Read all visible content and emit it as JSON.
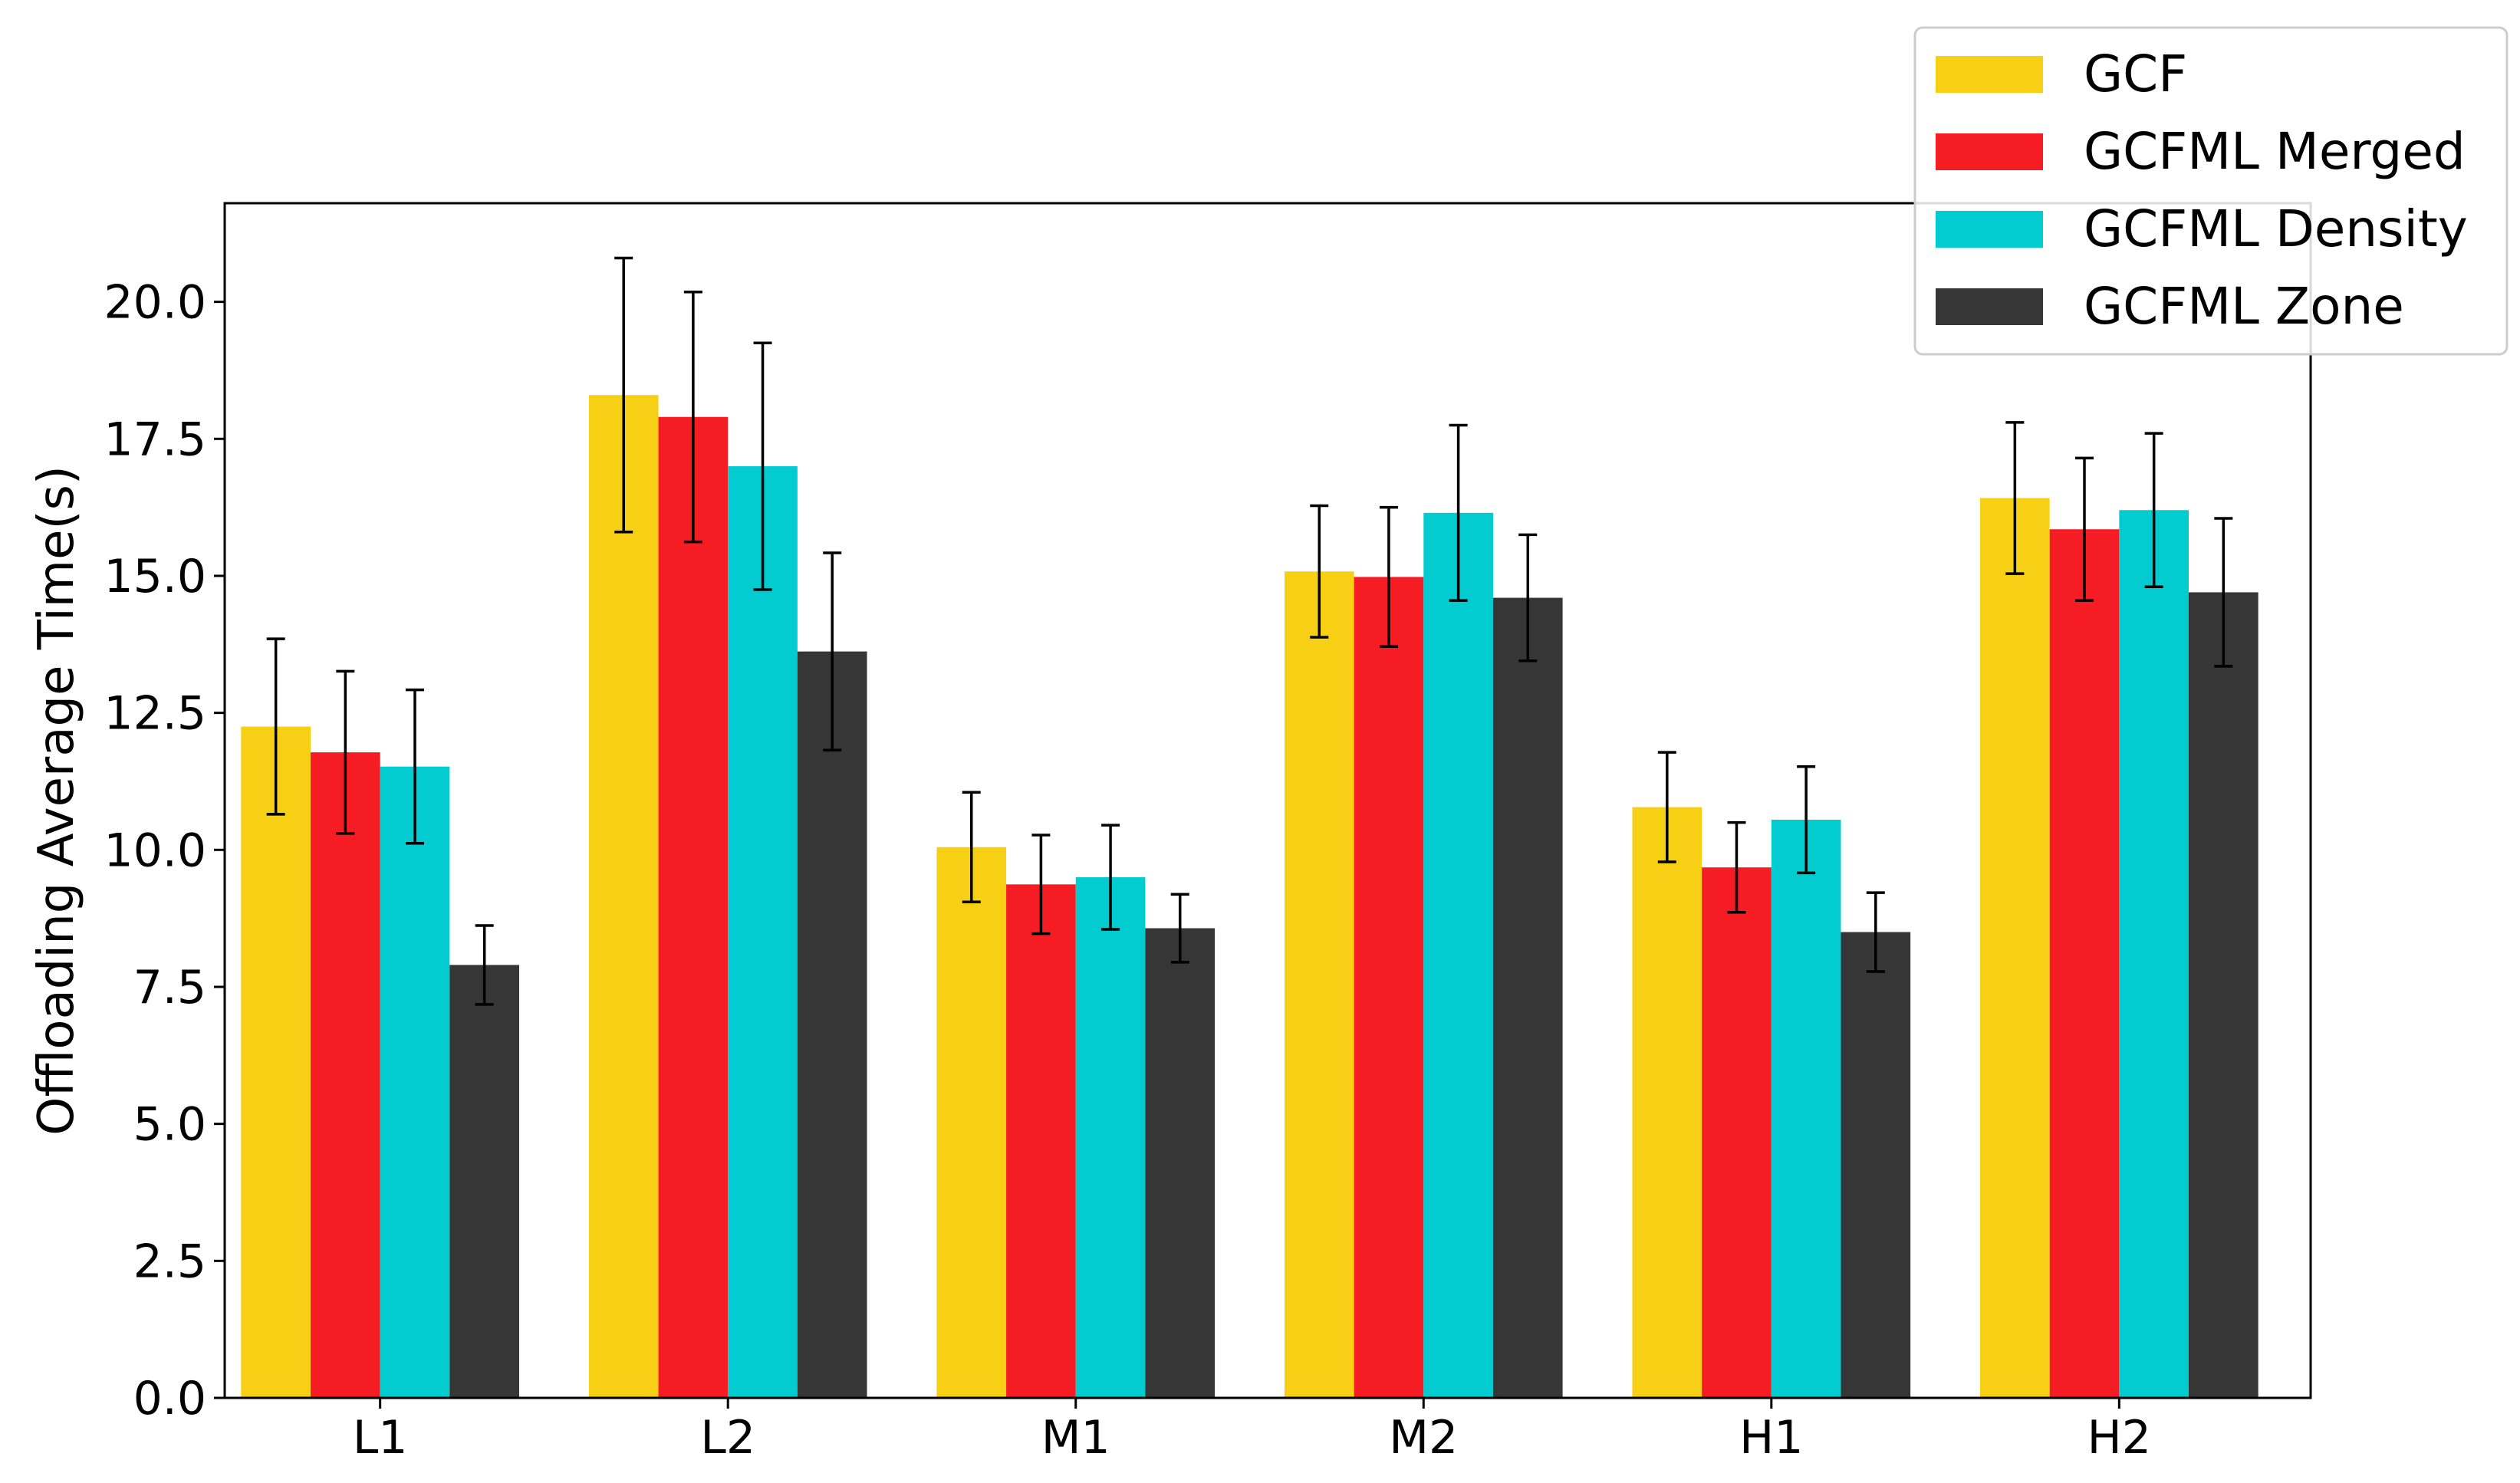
{
  "chart_data": {
    "type": "bar",
    "title": "",
    "xlabel": "",
    "ylabel": "Offloading Average Time(s)",
    "ylim": [
      0,
      21.8
    ],
    "yticks": [
      "0.0",
      "2.5",
      "5.0",
      "7.5",
      "10.0",
      "12.5",
      "15.0",
      "17.5",
      "20.0"
    ],
    "categories": [
      "L1",
      "L2",
      "M1",
      "M2",
      "H1",
      "H2"
    ],
    "grid": false,
    "legend_position": "top-right",
    "series": [
      {
        "name": "GCF",
        "color": "#F7D016",
        "values": [
          12.25,
          18.3,
          10.05,
          15.08,
          10.78,
          16.42
        ],
        "errors": [
          1.6,
          2.5,
          1.0,
          1.2,
          1.0,
          1.38
        ]
      },
      {
        "name": "GCFML Merged",
        "color": "#F51C24",
        "values": [
          11.78,
          17.9,
          9.37,
          14.98,
          9.68,
          15.85
        ],
        "errors": [
          1.48,
          2.28,
          0.9,
          1.27,
          0.82,
          1.3
        ]
      },
      {
        "name": "GCFML Density",
        "color": "#02CCCF",
        "values": [
          11.52,
          17.0,
          9.5,
          16.15,
          10.55,
          16.2
        ],
        "errors": [
          1.4,
          2.25,
          0.95,
          1.6,
          0.97,
          1.4
        ]
      },
      {
        "name": "GCFML Zone",
        "color": "#363636",
        "values": [
          7.9,
          13.62,
          8.57,
          14.6,
          8.5,
          14.7
        ],
        "errors": [
          0.72,
          1.8,
          0.62,
          1.15,
          0.72,
          1.35
        ]
      }
    ]
  }
}
